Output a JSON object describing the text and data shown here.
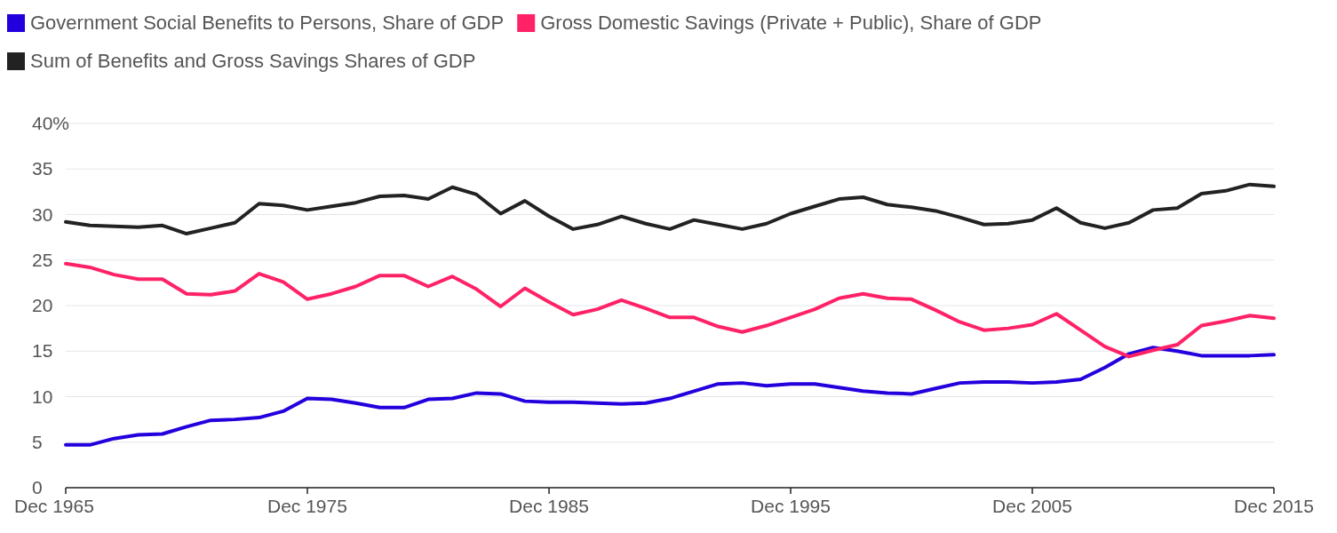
{
  "chart_data": {
    "type": "line",
    "x": [
      "1965-12",
      "1966-12",
      "1967-12",
      "1968-12",
      "1969-12",
      "1970-12",
      "1971-12",
      "1972-12",
      "1973-12",
      "1974-12",
      "1975-12",
      "1976-12",
      "1977-12",
      "1978-12",
      "1979-12",
      "1980-12",
      "1981-12",
      "1982-12",
      "1983-12",
      "1984-12",
      "1985-12",
      "1986-12",
      "1987-12",
      "1988-12",
      "1989-12",
      "1990-12",
      "1991-12",
      "1992-12",
      "1993-12",
      "1994-12",
      "1995-12",
      "1996-12",
      "1997-12",
      "1998-12",
      "1999-12",
      "2000-12",
      "2001-12",
      "2002-12",
      "2003-12",
      "2004-12",
      "2005-12",
      "2006-12",
      "2007-12",
      "2008-12",
      "2009-12",
      "2010-12",
      "2011-12",
      "2012-12",
      "2013-12",
      "2014-12",
      "2015-12"
    ],
    "series": [
      {
        "name": "Government Social Benefits to Persons, Share of GDP",
        "color": "#2200dd",
        "values": [
          4.7,
          4.7,
          5.4,
          5.8,
          5.9,
          6.7,
          7.4,
          7.5,
          7.7,
          8.4,
          9.8,
          9.7,
          9.3,
          8.8,
          8.8,
          9.7,
          9.8,
          10.4,
          10.3,
          9.5,
          9.4,
          9.4,
          9.3,
          9.2,
          9.3,
          9.8,
          10.6,
          11.4,
          11.5,
          11.2,
          11.4,
          11.4,
          11.0,
          10.6,
          10.4,
          10.3,
          10.9,
          11.5,
          11.6,
          11.6,
          11.5,
          11.6,
          11.9,
          13.2,
          14.7,
          15.4,
          15.0,
          14.5,
          14.5,
          14.5,
          14.6
        ]
      },
      {
        "name": "Gross Domestic Savings (Private + Public), Share of GDP",
        "color": "#ff2266",
        "values": [
          24.6,
          24.2,
          23.4,
          22.9,
          22.9,
          21.3,
          21.2,
          21.6,
          23.5,
          22.6,
          20.7,
          21.3,
          22.1,
          23.3,
          23.3,
          22.1,
          23.2,
          21.8,
          19.9,
          21.9,
          20.4,
          19.0,
          19.6,
          20.6,
          19.7,
          18.7,
          18.7,
          17.7,
          17.1,
          17.8,
          18.7,
          19.6,
          20.8,
          21.3,
          20.8,
          20.7,
          19.5,
          18.2,
          17.3,
          17.5,
          17.9,
          19.1,
          17.3,
          15.5,
          14.4,
          15.1,
          15.7,
          17.8,
          18.3,
          18.9,
          18.6
        ]
      },
      {
        "name": "Sum of Benefits and Gross Savings Shares of GDP",
        "color": "#222222",
        "values": [
          29.2,
          28.8,
          28.7,
          28.6,
          28.8,
          27.9,
          28.5,
          29.1,
          31.2,
          31.0,
          30.5,
          30.9,
          31.3,
          32.0,
          32.1,
          31.7,
          33.0,
          32.2,
          30.1,
          31.5,
          29.8,
          28.4,
          28.9,
          29.8,
          29.0,
          28.4,
          29.4,
          28.9,
          28.4,
          29.0,
          30.1,
          30.9,
          31.7,
          31.9,
          31.1,
          30.8,
          30.4,
          29.7,
          28.9,
          29.0,
          29.4,
          30.7,
          29.1,
          28.5,
          29.1,
          30.5,
          30.7,
          32.3,
          32.6,
          33.3,
          33.1
        ]
      }
    ],
    "xlim": [
      "1965-12",
      "2015-12"
    ],
    "xticks": [
      {
        "value": "1965-12",
        "label": "Dec 1965"
      },
      {
        "value": "1975-12",
        "label": "Dec 1975"
      },
      {
        "value": "1985-12",
        "label": "Dec 1985"
      },
      {
        "value": "1995-12",
        "label": "Dec 1995"
      },
      {
        "value": "2005-12",
        "label": "Dec 2005"
      },
      {
        "value": "2015-12",
        "label": "Dec 2015"
      }
    ],
    "ylim": [
      0,
      40
    ],
    "yticks": [
      0,
      5,
      10,
      15,
      20,
      25,
      30,
      35,
      {
        "value": 40,
        "label": "40%"
      }
    ],
    "grid": "y",
    "legend": "top left",
    "marker": "none",
    "line_style": "solid"
  }
}
